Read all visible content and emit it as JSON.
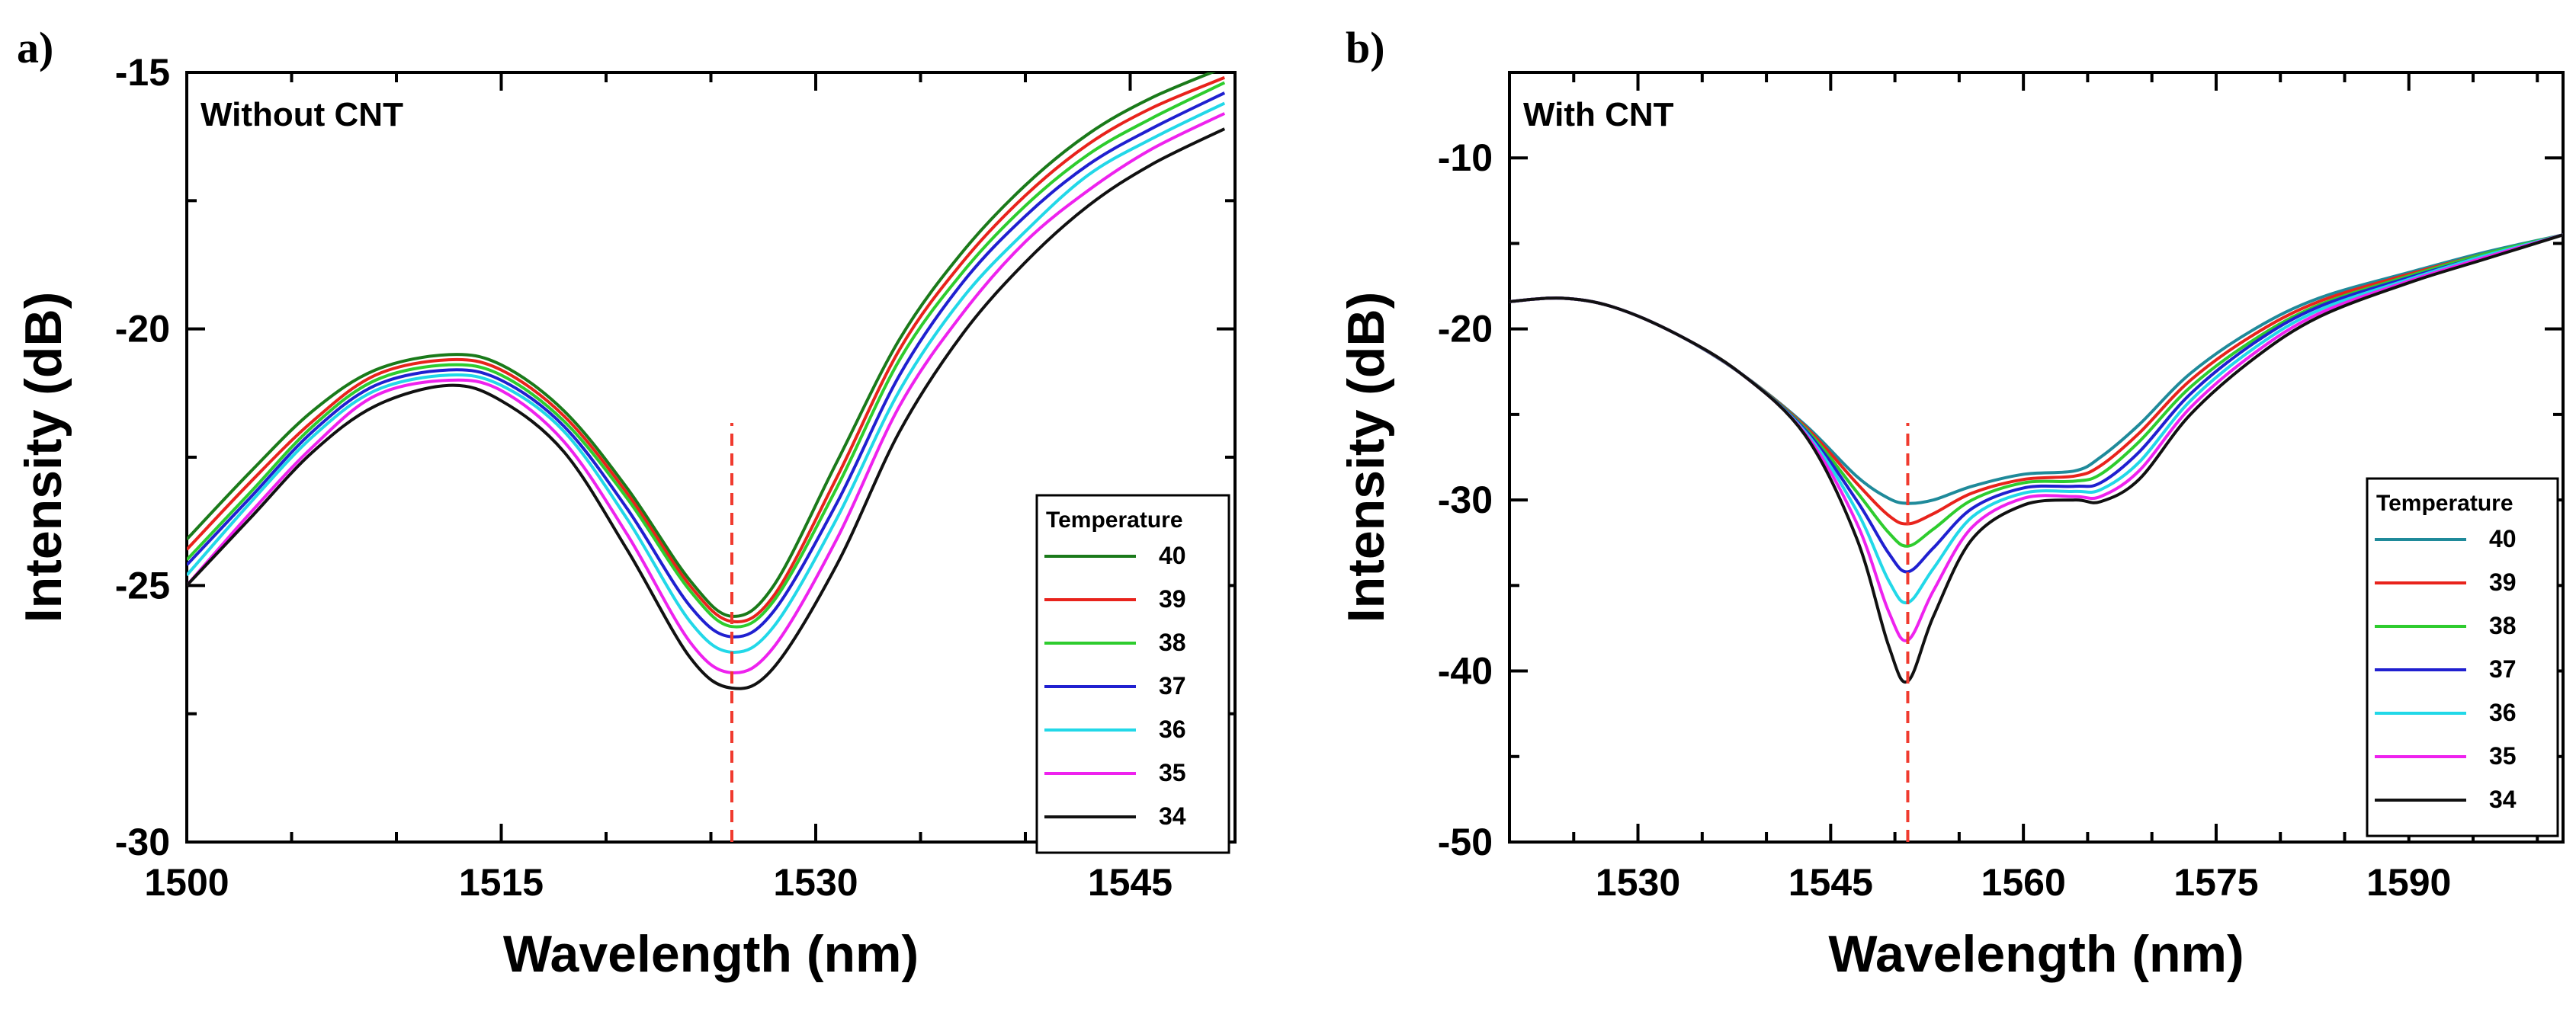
{
  "chart_data": [
    {
      "type": "line",
      "panel_label": "a)",
      "inset_label": "Without CNT",
      "xlabel": "Wavelength (nm)",
      "ylabel": "Intensity (dB)",
      "xlim": [
        1500,
        1550
      ],
      "ylim": [
        -30,
        -15
      ],
      "xticks": [
        1500,
        1515,
        1530,
        1545
      ],
      "yticks": [
        -15,
        -20,
        -25,
        -30
      ],
      "tick_labels_x": [
        "1500",
        "1515",
        "1530",
        "1545"
      ],
      "tick_labels_y": [
        "-15",
        "-20",
        "-25",
        "-30"
      ],
      "marker_line_x": 1526,
      "legend": {
        "title": "Temperature",
        "placement": "bottom-right"
      },
      "series": [
        {
          "name": "40",
          "color": "#1a7a1a",
          "x": [
            1500,
            1503,
            1506,
            1509,
            1512.5,
            1515,
            1518,
            1521,
            1524,
            1526,
            1528,
            1531,
            1534,
            1537,
            1540,
            1543,
            1546,
            1549.5
          ],
          "y": [
            -24.1,
            -22.8,
            -21.6,
            -20.8,
            -20.5,
            -20.7,
            -21.6,
            -23.1,
            -24.9,
            -25.6,
            -25.0,
            -22.6,
            -20.2,
            -18.5,
            -17.2,
            -16.2,
            -15.5,
            -14.9
          ]
        },
        {
          "name": "39",
          "color": "#e8231c",
          "x": [
            1500,
            1503,
            1506,
            1509,
            1512.5,
            1515,
            1518,
            1521,
            1524,
            1526,
            1528,
            1531,
            1534,
            1537,
            1540,
            1543,
            1546,
            1549.5
          ],
          "y": [
            -24.3,
            -23.0,
            -21.8,
            -20.9,
            -20.6,
            -20.8,
            -21.7,
            -23.2,
            -25.0,
            -25.7,
            -25.2,
            -22.9,
            -20.4,
            -18.7,
            -17.4,
            -16.4,
            -15.7,
            -15.1
          ]
        },
        {
          "name": "38",
          "color": "#2ecc2e",
          "x": [
            1500,
            1503,
            1506,
            1509,
            1512.5,
            1515,
            1518,
            1521,
            1524,
            1526,
            1528,
            1531,
            1534,
            1537,
            1540,
            1543,
            1546,
            1549.5
          ],
          "y": [
            -24.5,
            -23.2,
            -21.9,
            -21.0,
            -20.7,
            -20.9,
            -21.8,
            -23.3,
            -25.1,
            -25.8,
            -25.3,
            -23.1,
            -20.6,
            -18.9,
            -17.6,
            -16.6,
            -15.9,
            -15.2
          ]
        },
        {
          "name": "37",
          "color": "#2020d0",
          "x": [
            1500,
            1503,
            1506,
            1509,
            1512.5,
            1515,
            1518,
            1521,
            1524,
            1526,
            1528,
            1531,
            1534,
            1537,
            1540,
            1543,
            1546,
            1549.5
          ],
          "y": [
            -24.6,
            -23.3,
            -22.0,
            -21.1,
            -20.8,
            -21.0,
            -21.9,
            -23.5,
            -25.4,
            -26.0,
            -25.5,
            -23.4,
            -20.9,
            -19.1,
            -17.8,
            -16.8,
            -16.1,
            -15.4
          ]
        },
        {
          "name": "36",
          "color": "#22d8e8",
          "x": [
            1500,
            1503,
            1506,
            1509,
            1512.5,
            1515,
            1518,
            1521,
            1524,
            1526,
            1528,
            1531,
            1534,
            1537,
            1540,
            1543,
            1546,
            1549.5
          ],
          "y": [
            -24.8,
            -23.4,
            -22.1,
            -21.2,
            -20.9,
            -21.1,
            -22.0,
            -23.7,
            -25.7,
            -26.3,
            -25.8,
            -23.7,
            -21.2,
            -19.4,
            -18.1,
            -17.0,
            -16.3,
            -15.6
          ]
        },
        {
          "name": "35",
          "color": "#ee22ee",
          "x": [
            1500,
            1503,
            1506,
            1509,
            1512.5,
            1515,
            1518,
            1521,
            1524,
            1526,
            1528,
            1531,
            1534,
            1537,
            1540,
            1543,
            1546,
            1549.5
          ],
          "y": [
            -25.0,
            -23.6,
            -22.3,
            -21.3,
            -21.0,
            -21.2,
            -22.2,
            -24.0,
            -26.1,
            -26.7,
            -26.2,
            -24.1,
            -21.5,
            -19.7,
            -18.3,
            -17.3,
            -16.5,
            -15.8
          ]
        },
        {
          "name": "34",
          "color": "#111111",
          "x": [
            1500,
            1503,
            1506,
            1509,
            1512.5,
            1515,
            1518,
            1521,
            1524,
            1526,
            1528,
            1531,
            1534,
            1537,
            1540,
            1543,
            1546,
            1549.5
          ],
          "y": [
            -25.0,
            -23.7,
            -22.4,
            -21.5,
            -21.1,
            -21.4,
            -22.4,
            -24.3,
            -26.4,
            -27.0,
            -26.6,
            -24.6,
            -22.0,
            -20.1,
            -18.7,
            -17.6,
            -16.8,
            -16.1
          ]
        }
      ]
    },
    {
      "type": "line",
      "panel_label": "b)",
      "inset_label": "With CNT",
      "xlabel": "Wavelength (nm)",
      "ylabel": "Intensity (dB)",
      "xlim": [
        1520,
        1602
      ],
      "ylim": [
        -50,
        -5
      ],
      "xticks": [
        1530,
        1545,
        1560,
        1575,
        1590
      ],
      "yticks": [
        -10,
        -20,
        -30,
        -40,
        -50
      ],
      "tick_labels_x": [
        "1530",
        "1545",
        "1560",
        "1575",
        "1590"
      ],
      "tick_labels_y": [
        "-10",
        "-20",
        "-30",
        "-40",
        "-50"
      ],
      "marker_line_x": 1551,
      "legend": {
        "title": "Temperature",
        "placement": "bottom-right"
      },
      "series": [
        {
          "name": "40",
          "color": "#1f8a9a",
          "x": [
            1520,
            1524,
            1528,
            1533,
            1538,
            1543,
            1547,
            1549.5,
            1551,
            1553,
            1556,
            1560,
            1564,
            1566,
            1569,
            1573,
            1578,
            1583,
            1590,
            1596,
            1602
          ],
          "y": [
            -18.4,
            -18.2,
            -18.7,
            -20.3,
            -22.6,
            -25.6,
            -28.6,
            -29.9,
            -30.2,
            -30.0,
            -29.2,
            -28.5,
            -28.3,
            -27.5,
            -25.6,
            -22.6,
            -20.0,
            -18.2,
            -16.7,
            -15.5,
            -14.5
          ]
        },
        {
          "name": "39",
          "color": "#e8231c",
          "x": [
            1520,
            1524,
            1528,
            1533,
            1538,
            1543,
            1547,
            1549.5,
            1551,
            1553,
            1556,
            1560,
            1564,
            1566,
            1569,
            1573,
            1578,
            1583,
            1590,
            1596,
            1602
          ],
          "y": [
            -18.4,
            -18.2,
            -18.7,
            -20.3,
            -22.6,
            -25.7,
            -29.0,
            -30.9,
            -31.4,
            -30.8,
            -29.6,
            -28.8,
            -28.6,
            -28.0,
            -26.1,
            -23.0,
            -20.3,
            -18.4,
            -16.8,
            -15.6,
            -14.5
          ]
        },
        {
          "name": "38",
          "color": "#2ecc2e",
          "x": [
            1520,
            1524,
            1528,
            1533,
            1538,
            1543,
            1547,
            1549.5,
            1551,
            1553,
            1556,
            1560,
            1564,
            1566,
            1569,
            1573,
            1578,
            1583,
            1590,
            1596,
            1602
          ],
          "y": [
            -18.4,
            -18.2,
            -18.7,
            -20.3,
            -22.6,
            -25.8,
            -29.5,
            -31.9,
            -32.7,
            -31.7,
            -30.0,
            -29.0,
            -28.9,
            -28.5,
            -26.6,
            -23.4,
            -20.6,
            -18.6,
            -16.9,
            -15.6,
            -14.5
          ]
        },
        {
          "name": "37",
          "color": "#2020d0",
          "x": [
            1520,
            1524,
            1528,
            1533,
            1538,
            1543,
            1547,
            1549.5,
            1551,
            1553,
            1556,
            1560,
            1564,
            1566,
            1569,
            1573,
            1578,
            1583,
            1590,
            1596,
            1602
          ],
          "y": [
            -18.4,
            -18.2,
            -18.7,
            -20.3,
            -22.6,
            -25.9,
            -30.0,
            -33.1,
            -34.2,
            -32.8,
            -30.5,
            -29.3,
            -29.2,
            -29.0,
            -27.2,
            -23.8,
            -20.8,
            -18.7,
            -17.0,
            -15.7,
            -14.5
          ]
        },
        {
          "name": "36",
          "color": "#22d8e8",
          "x": [
            1520,
            1524,
            1528,
            1533,
            1538,
            1543,
            1547,
            1549.5,
            1551,
            1553,
            1556,
            1560,
            1564,
            1566,
            1569,
            1573,
            1578,
            1583,
            1590,
            1596,
            1602
          ],
          "y": [
            -18.4,
            -18.2,
            -18.7,
            -20.3,
            -22.6,
            -26.0,
            -30.6,
            -34.7,
            -36.0,
            -34.0,
            -31.0,
            -29.6,
            -29.5,
            -29.4,
            -27.8,
            -24.2,
            -21.1,
            -18.9,
            -17.1,
            -15.7,
            -14.5
          ]
        },
        {
          "name": "35",
          "color": "#ee22ee",
          "x": [
            1520,
            1524,
            1528,
            1533,
            1538,
            1543,
            1547,
            1549.5,
            1551,
            1553,
            1556,
            1560,
            1564,
            1566,
            1569,
            1573,
            1578,
            1583,
            1590,
            1596,
            1602
          ],
          "y": [
            -18.4,
            -18.2,
            -18.7,
            -20.3,
            -22.6,
            -26.1,
            -31.3,
            -36.5,
            -38.2,
            -35.3,
            -31.6,
            -29.9,
            -29.8,
            -29.8,
            -28.3,
            -24.6,
            -21.4,
            -19.1,
            -17.2,
            -15.8,
            -14.5
          ]
        },
        {
          "name": "34",
          "color": "#111111",
          "x": [
            1520,
            1524,
            1528,
            1533,
            1538,
            1543,
            1547,
            1549.5,
            1551,
            1553,
            1556,
            1560,
            1564,
            1566,
            1569,
            1573,
            1578,
            1583,
            1590,
            1596,
            1602
          ],
          "y": [
            -18.4,
            -18.2,
            -18.7,
            -20.3,
            -22.6,
            -26.2,
            -32.2,
            -38.5,
            -40.6,
            -36.8,
            -32.3,
            -30.3,
            -30.0,
            -30.1,
            -28.8,
            -25.0,
            -21.7,
            -19.3,
            -17.3,
            -15.9,
            -14.5
          ]
        }
      ]
    }
  ]
}
